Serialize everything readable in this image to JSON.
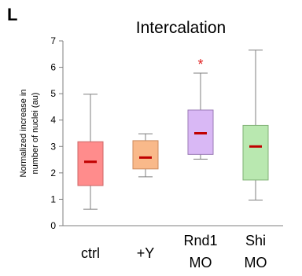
{
  "panel_label": "L",
  "chart_data": {
    "type": "box",
    "title": "Intercalation",
    "ylabel_lines": [
      "Normalized increase in",
      "number of nuclei (au)"
    ],
    "ylim": [
      0,
      7
    ],
    "yticks": [
      "0",
      "1",
      "2",
      "3",
      "4",
      "5",
      "6",
      "7"
    ],
    "grid": false,
    "categories": [
      {
        "label_lines": [
          "ctrl"
        ],
        "min": 0.62,
        "q1": 1.52,
        "median": 2.42,
        "q3": 3.18,
        "max": 4.98,
        "fill": "#ff8c8c",
        "stroke": "#cc6666",
        "annotation": ""
      },
      {
        "label_lines": [
          "+Y"
        ],
        "min": 1.85,
        "q1": 2.15,
        "median": 2.58,
        "q3": 3.22,
        "max": 3.48,
        "fill": "#f9b98a",
        "stroke": "#cc8a5e",
        "annotation": ""
      },
      {
        "label_lines": [
          "Rnd1",
          "MO"
        ],
        "min": 2.52,
        "q1": 2.7,
        "median": 3.5,
        "q3": 4.38,
        "max": 5.78,
        "fill": "#d9b8f5",
        "stroke": "#9a7ab5",
        "annotation": "*"
      },
      {
        "label_lines": [
          "Shi",
          "MO"
        ],
        "min": 0.97,
        "q1": 1.73,
        "median": 3.0,
        "q3": 3.8,
        "max": 6.65,
        "fill": "#b9e8b0",
        "stroke": "#7fb075",
        "annotation": ""
      }
    ],
    "median_color": "#c00000",
    "annotation_color": "#e02020"
  }
}
